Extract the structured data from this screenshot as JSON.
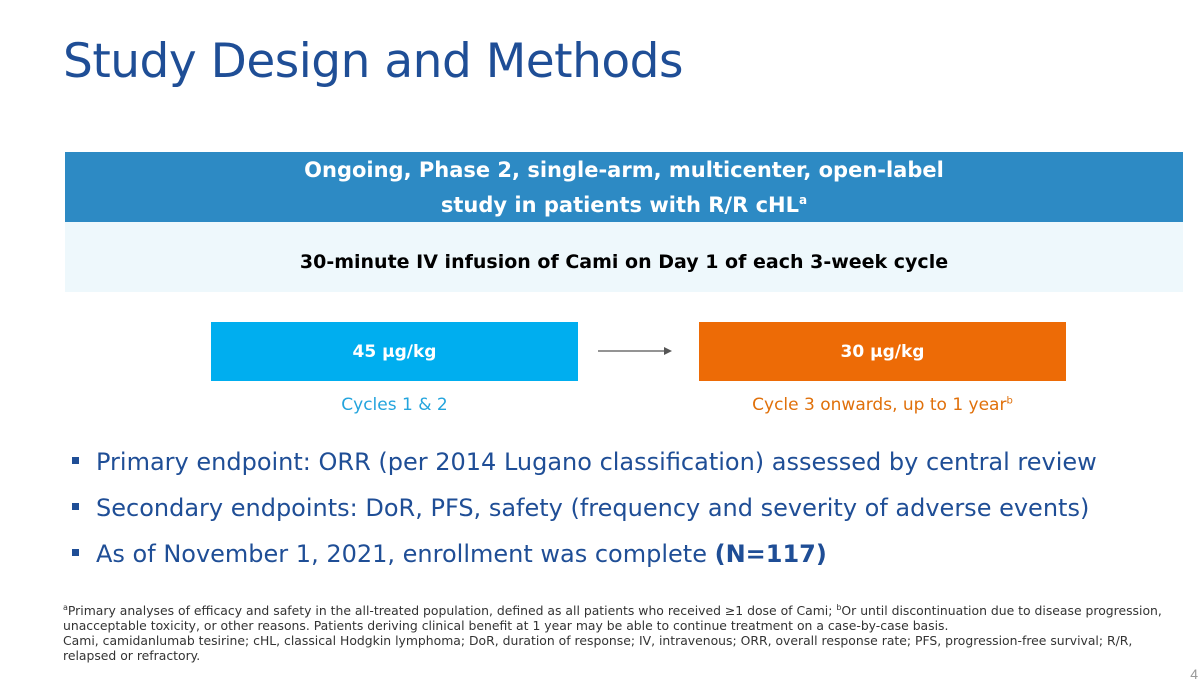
{
  "slide": {
    "title": "Study Design and Methods",
    "banner": {
      "line1": "Ongoing, Phase 2, single-arm, multicenter, open-label",
      "line2": "study in patients with R/R cHL",
      "line2_sup": "a"
    },
    "subbanner": "30-minute IV infusion of Cami on Day 1 of each 3-week cycle",
    "doses": {
      "left": {
        "value": "45 µg/kg",
        "label": "Cycles 1 & 2",
        "color": "#00aeef"
      },
      "right": {
        "value": "30 µg/kg",
        "label": "Cycle 3 onwards, up to 1 year",
        "label_sup": "b",
        "color": "#ed6b06"
      }
    },
    "bullets": [
      {
        "text": "Primary endpoint: ORR (per 2014 Lugano classification) assessed by central review"
      },
      {
        "text": "Secondary endpoints: DoR, PFS, safety (frequency and severity of adverse events)"
      },
      {
        "text": "As of November 1, 2021, enrollment was complete ",
        "bold": "(N=117)"
      }
    ],
    "footnotes": {
      "sup_a": "a",
      "line_a": "Primary analyses of efficacy and safety in the all-treated population, defined as all patients who received ≥1 dose of Cami; ",
      "sup_b": "b",
      "line_b": "Or until discontinuation due to disease progression, unacceptable toxicity, or other reasons. Patients deriving clinical benefit at 1 year may be able to continue treatment on a case-by-case basis.",
      "abbreviations": "Cami, camidanlumab tesirine; cHL, classical Hodgkin lymphoma; DoR, duration of response; IV, intravenous; ORR, overall response rate; PFS, progression-free survival; R/R, relapsed or refractory."
    },
    "page_number": "4"
  }
}
